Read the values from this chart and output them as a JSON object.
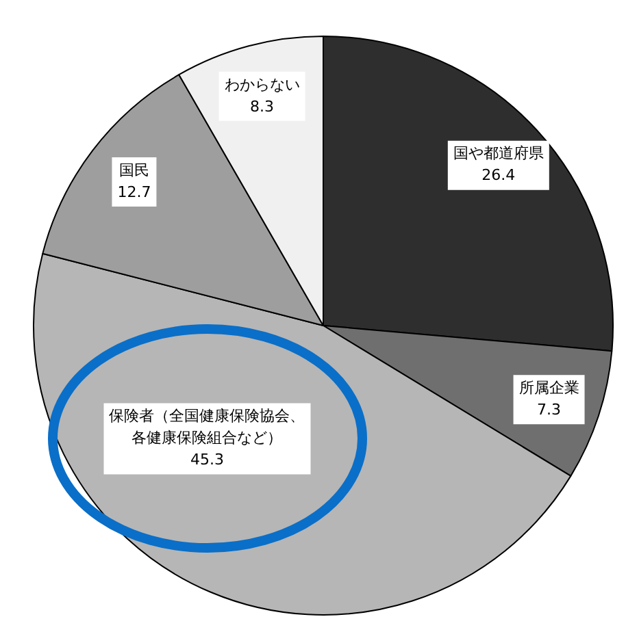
{
  "chart_data": {
    "type": "pie",
    "categories": [
      "国や都道府県",
      "所属企業",
      "保険者（全国健康保険協会、各健康保険組合など）",
      "国民",
      "わからない"
    ],
    "values": [
      26.4,
      7.3,
      45.3,
      12.7,
      8.3
    ],
    "colors": [
      "#2e2e2e",
      "#6f6f6f",
      "#b6b6b6",
      "#9e9e9e",
      "#f0f0f0"
    ],
    "data_labels": true
  }
}
